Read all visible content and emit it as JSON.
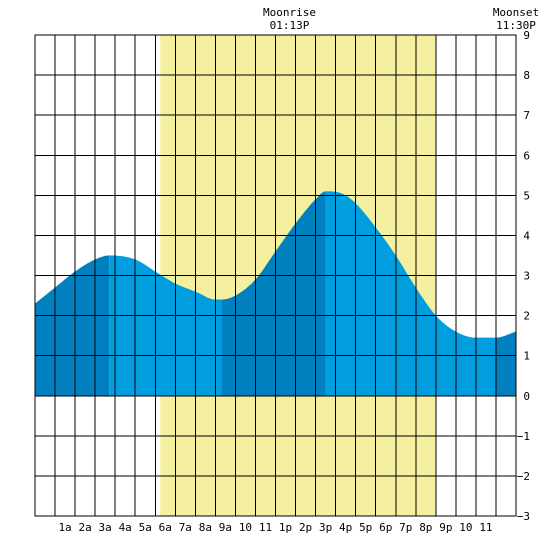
{
  "chart_data": {
    "type": "area",
    "title": "",
    "xlabel": "",
    "ylabel": "",
    "xlim": [
      -0.5,
      23.5
    ],
    "ylim": [
      -3,
      9
    ],
    "grid": true,
    "x_ticks": [
      {
        "hour": 1,
        "label": "1a"
      },
      {
        "hour": 2,
        "label": "2a"
      },
      {
        "hour": 3,
        "label": "3a"
      },
      {
        "hour": 4,
        "label": "4a"
      },
      {
        "hour": 5,
        "label": "5a"
      },
      {
        "hour": 6,
        "label": "6a"
      },
      {
        "hour": 7,
        "label": "7a"
      },
      {
        "hour": 8,
        "label": "8a"
      },
      {
        "hour": 9,
        "label": "9a"
      },
      {
        "hour": 10,
        "label": "10"
      },
      {
        "hour": 11,
        "label": "11"
      },
      {
        "hour": 12,
        "label": "1p"
      },
      {
        "hour": 13,
        "label": "2p"
      },
      {
        "hour": 14,
        "label": "3p"
      },
      {
        "hour": 15,
        "label": "4p"
      },
      {
        "hour": 16,
        "label": "5p"
      },
      {
        "hour": 17,
        "label": "6p"
      },
      {
        "hour": 18,
        "label": "7p"
      },
      {
        "hour": 19,
        "label": "8p"
      },
      {
        "hour": 20,
        "label": "9p"
      },
      {
        "hour": 21,
        "label": "10"
      },
      {
        "hour": 22,
        "label": "11"
      }
    ],
    "y_ticks": [
      -3,
      -2,
      -1,
      0,
      1,
      2,
      3,
      4,
      5,
      6,
      7,
      8,
      9
    ],
    "daylight_band": {
      "start": 5.75,
      "end": 19.5,
      "color": "#f5f0a0"
    },
    "tide_series": {
      "x": [
        -0.5,
        0.5,
        1.5,
        2.5,
        3.2,
        4.5,
        5.5,
        6.5,
        7.5,
        8.5,
        8.8,
        9.5,
        10.5,
        11.5,
        12.5,
        13.5,
        14.0,
        14.8,
        15.5,
        16.5,
        17.5,
        18.5,
        19.5,
        20.5,
        21.5,
        22.5,
        23.5
      ],
      "y": [
        2.3,
        2.7,
        3.1,
        3.4,
        3.5,
        3.4,
        3.1,
        2.8,
        2.6,
        2.4,
        2.4,
        2.5,
        2.9,
        3.6,
        4.3,
        4.9,
        5.1,
        5.05,
        4.8,
        4.2,
        3.5,
        2.7,
        2.0,
        1.6,
        1.45,
        1.45,
        1.6
      ]
    },
    "tide_phases": [
      {
        "start": -0.5,
        "end": 3.2,
        "color": "#0080bf"
      },
      {
        "start": 3.2,
        "end": 8.8,
        "color": "#009edf"
      },
      {
        "start": 8.8,
        "end": 14.0,
        "color": "#0080bf"
      },
      {
        "start": 14.0,
        "end": 22.5,
        "color": "#009edf"
      },
      {
        "start": 22.5,
        "end": 23.5,
        "color": "#0080bf"
      }
    ],
    "annotations": [
      {
        "label": "Moonrise",
        "time": "01:13P",
        "hour": 12.2
      },
      {
        "label": "Moonset",
        "time": "11:30P",
        "hour": 23.5
      }
    ]
  },
  "colors": {
    "grid": "#000000",
    "daylight": "#f5f0a0",
    "tide_dark": "#0080bf",
    "tide_light": "#009edf"
  }
}
